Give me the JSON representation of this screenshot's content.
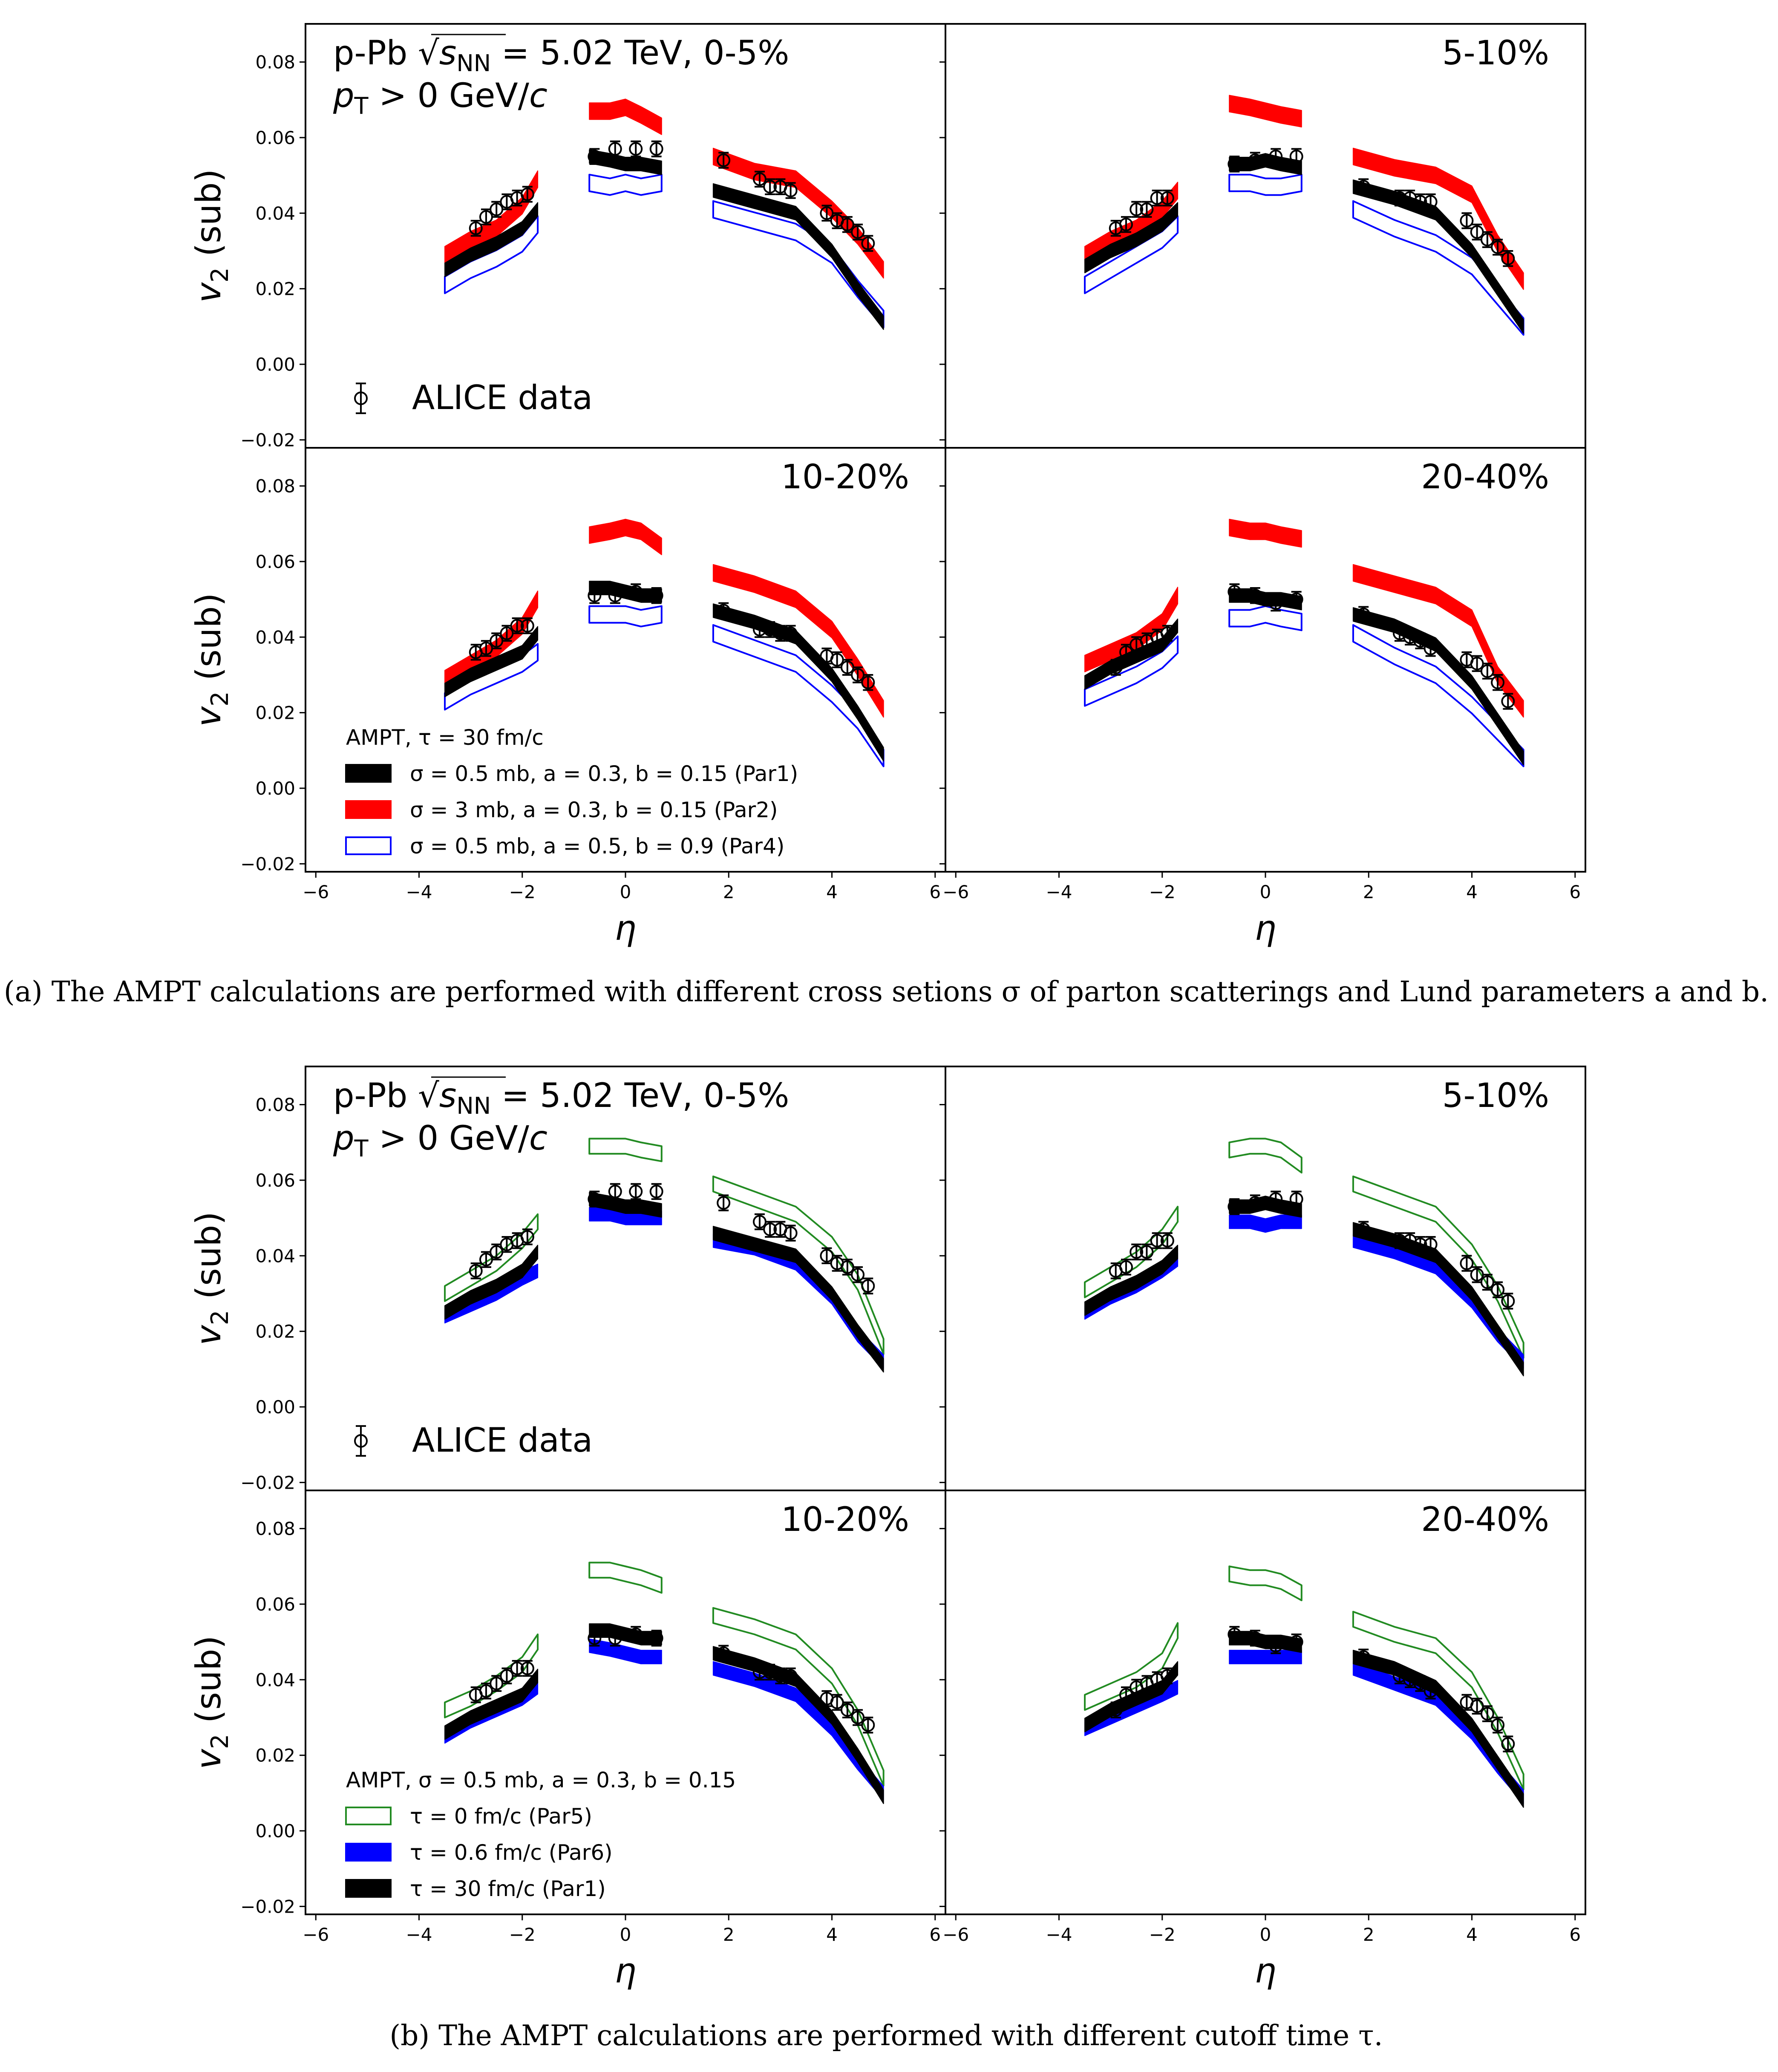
{
  "chart_data": {
    "type": "band-and-scatter",
    "xlabel": "η",
    "ylabel": {
      "main": "v",
      "sub": "2",
      "suffix": " (sub)"
    },
    "xlim": [
      -6.2,
      6.2
    ],
    "ylim": [
      -0.0221,
      0.0901
    ],
    "xticks": [
      -6,
      -4,
      -2,
      0,
      2,
      4,
      6
    ],
    "yticks": [
      -0.02,
      0.0,
      0.02,
      0.04,
      0.06,
      0.08
    ],
    "ytick_labels": [
      "−0.02",
      "0.00",
      "0.02",
      "0.04",
      "0.06",
      "0.08"
    ],
    "xtick_labels": [
      "−6",
      "−4",
      "−2",
      "0",
      "2",
      "4",
      "6"
    ],
    "grid": false,
    "annotation": {
      "line1_prefix": "p-Pb ",
      "sqrt_s": "s",
      "sqrt_sub": "NN",
      "line1_suffix": " = 5.02 TeV, 0-5%",
      "line2_p": "p",
      "line2_sub": "T",
      "line2_rest": " > 0 GeV/",
      "line2_c": "c"
    },
    "data_label": "ALICE data",
    "model_eta_segments": [
      [
        -3.5,
        -3.0,
        -2.5,
        -2.0,
        -1.7
      ],
      [
        -0.7,
        -0.3,
        0.0,
        0.3,
        0.7
      ],
      [
        1.7,
        2.5,
        3.3,
        4.0,
        4.5,
        5.0
      ]
    ],
    "data_eta_segments": [
      [
        -2.9,
        -2.7,
        -2.5,
        -2.3,
        -2.1,
        -1.9
      ],
      [
        -0.6,
        -0.2,
        0.2,
        0.6
      ],
      [
        1.9,
        2.6,
        2.8,
        3.0,
        3.2,
        3.9,
        4.1,
        4.3,
        4.5,
        4.7
      ]
    ],
    "data_error": 0.002,
    "centralities": [
      {
        "label": "0-5%",
        "data": [
          [
            0.036,
            0.039,
            0.041,
            0.043,
            0.044,
            0.045
          ],
          [
            0.055,
            0.057,
            0.057,
            0.057
          ],
          [
            0.054,
            0.049,
            0.047,
            0.047,
            0.046,
            0.04,
            0.038,
            0.037,
            0.035,
            0.032
          ]
        ]
      },
      {
        "label": "5-10%",
        "data": [
          [
            0.036,
            0.037,
            0.041,
            0.041,
            0.044,
            0.044
          ],
          [
            0.053,
            0.054,
            0.055,
            0.055
          ],
          [
            0.047,
            0.044,
            0.044,
            0.043,
            0.043,
            0.038,
            0.035,
            0.033,
            0.031,
            0.028
          ]
        ]
      },
      {
        "label": "10-20%",
        "data": [
          [
            0.036,
            0.037,
            0.039,
            0.041,
            0.043,
            0.043
          ],
          [
            0.051,
            0.051,
            0.052,
            0.051
          ],
          [
            0.047,
            0.042,
            0.042,
            0.041,
            0.041,
            0.035,
            0.034,
            0.032,
            0.03,
            0.028
          ]
        ]
      },
      {
        "label": "20-40%",
        "data": [
          [
            0.032,
            0.036,
            0.038,
            0.039,
            0.04,
            0.041
          ],
          [
            0.052,
            0.051,
            0.049,
            0.05
          ],
          [
            0.046,
            0.041,
            0.04,
            0.039,
            0.037,
            0.034,
            0.033,
            0.031,
            0.028,
            0.023
          ]
        ]
      }
    ],
    "models": {
      "Par1": {
        "color": "#000000",
        "style": "filled",
        "half_width": 0.0018,
        "values": [
          [
            [
              0.025,
              0.029,
              0.032,
              0.036,
              0.041
            ],
            [
              0.055,
              0.054,
              0.053,
              0.053,
              0.052
            ],
            [
              0.046,
              0.043,
              0.04,
              0.03,
              0.02,
              0.011
            ]
          ],
          [
            [
              0.026,
              0.03,
              0.033,
              0.037,
              0.041
            ],
            [
              0.053,
              0.053,
              0.054,
              0.053,
              0.052
            ],
            [
              0.047,
              0.044,
              0.04,
              0.03,
              0.02,
              0.01
            ]
          ],
          [
            [
              0.026,
              0.03,
              0.033,
              0.036,
              0.041
            ],
            [
              0.053,
              0.053,
              0.052,
              0.051,
              0.051
            ],
            [
              0.047,
              0.044,
              0.04,
              0.03,
              0.02,
              0.009
            ]
          ],
          [
            [
              0.028,
              0.032,
              0.035,
              0.038,
              0.043
            ],
            [
              0.051,
              0.051,
              0.05,
              0.05,
              0.049
            ],
            [
              0.046,
              0.043,
              0.038,
              0.028,
              0.018,
              0.008
            ]
          ]
        ]
      },
      "Par2": {
        "color": "#ff0000",
        "style": "filled",
        "half_width": 0.0022,
        "values": [
          [
            [
              0.029,
              0.033,
              0.036,
              0.042,
              0.049
            ],
            [
              0.067,
              0.067,
              0.068,
              0.066,
              0.063
            ],
            [
              0.055,
              0.051,
              0.049,
              0.041,
              0.034,
              0.025
            ]
          ],
          [
            [
              0.029,
              0.033,
              0.036,
              0.041,
              0.046
            ],
            [
              0.069,
              0.068,
              0.067,
              0.066,
              0.065
            ],
            [
              0.055,
              0.052,
              0.05,
              0.045,
              0.032,
              0.022
            ]
          ],
          [
            [
              0.029,
              0.033,
              0.037,
              0.043,
              0.05
            ],
            [
              0.067,
              0.068,
              0.069,
              0.068,
              0.064
            ],
            [
              0.057,
              0.054,
              0.05,
              0.042,
              0.032,
              0.021
            ]
          ],
          [
            [
              0.033,
              0.036,
              0.039,
              0.044,
              0.051
            ],
            [
              0.069,
              0.068,
              0.068,
              0.067,
              0.066
            ],
            [
              0.057,
              0.054,
              0.051,
              0.045,
              0.03,
              0.021
            ]
          ]
        ]
      },
      "Par4": {
        "color": "#0000ff",
        "style": "outline",
        "half_width": 0.0022,
        "values": [
          [
            [
              0.021,
              0.025,
              0.028,
              0.032,
              0.037
            ],
            [
              0.048,
              0.047,
              0.048,
              0.047,
              0.048
            ],
            [
              0.041,
              0.038,
              0.035,
              0.029,
              0.02,
              0.012
            ]
          ],
          [
            [
              0.021,
              0.025,
              0.029,
              0.033,
              0.037
            ],
            [
              0.048,
              0.048,
              0.047,
              0.047,
              0.048
            ],
            [
              0.041,
              0.036,
              0.032,
              0.026,
              0.018,
              0.01
            ]
          ],
          [
            [
              0.023,
              0.027,
              0.03,
              0.033,
              0.036
            ],
            [
              0.046,
              0.046,
              0.046,
              0.045,
              0.046
            ],
            [
              0.041,
              0.037,
              0.033,
              0.025,
              0.018,
              0.008
            ]
          ],
          [
            [
              0.024,
              0.027,
              0.03,
              0.034,
              0.038
            ],
            [
              0.045,
              0.045,
              0.046,
              0.045,
              0.044
            ],
            [
              0.041,
              0.035,
              0.03,
              0.022,
              0.015,
              0.008
            ]
          ]
        ]
      },
      "Par5": {
        "color": "#228b22",
        "style": "outline",
        "half_width": 0.002,
        "values": [
          [
            [
              0.03,
              0.034,
              0.038,
              0.044,
              0.049
            ],
            [
              0.069,
              0.069,
              0.069,
              0.068,
              0.067
            ],
            [
              0.059,
              0.055,
              0.051,
              0.043,
              0.033,
              0.016
            ]
          ],
          [
            [
              0.031,
              0.035,
              0.039,
              0.045,
              0.051
            ],
            [
              0.068,
              0.069,
              0.069,
              0.068,
              0.064
            ],
            [
              0.059,
              0.055,
              0.051,
              0.041,
              0.03,
              0.015
            ]
          ],
          [
            [
              0.032,
              0.035,
              0.039,
              0.044,
              0.05
            ],
            [
              0.069,
              0.069,
              0.068,
              0.067,
              0.065
            ],
            [
              0.057,
              0.054,
              0.05,
              0.041,
              0.03,
              0.014
            ]
          ],
          [
            [
              0.034,
              0.037,
              0.04,
              0.045,
              0.053
            ],
            [
              0.068,
              0.067,
              0.067,
              0.066,
              0.063
            ],
            [
              0.056,
              0.052,
              0.049,
              0.04,
              0.028,
              0.013
            ]
          ]
        ]
      },
      "Par6": {
        "color": "#0000ff",
        "style": "filled",
        "half_width": 0.0018,
        "values": [
          [
            [
              0.024,
              0.027,
              0.03,
              0.034,
              0.036
            ],
            [
              0.051,
              0.051,
              0.05,
              0.05,
              0.05
            ],
            [
              0.044,
              0.042,
              0.038,
              0.029,
              0.019,
              0.012
            ]
          ],
          [
            [
              0.025,
              0.029,
              0.032,
              0.036,
              0.039
            ],
            [
              0.049,
              0.049,
              0.048,
              0.049,
              0.049
            ],
            [
              0.044,
              0.041,
              0.037,
              0.028,
              0.019,
              0.012
            ]
          ],
          [
            [
              0.025,
              0.029,
              0.032,
              0.035,
              0.038
            ],
            [
              0.049,
              0.048,
              0.047,
              0.046,
              0.046
            ],
            [
              0.043,
              0.04,
              0.036,
              0.027,
              0.018,
              0.01
            ]
          ],
          [
            [
              0.027,
              0.03,
              0.033,
              0.036,
              0.038
            ],
            [
              0.046,
              0.046,
              0.046,
              0.046,
              0.046
            ],
            [
              0.043,
              0.039,
              0.035,
              0.026,
              0.017,
              0.009
            ]
          ]
        ]
      }
    },
    "figures": [
      {
        "models": [
          "Par2",
          "Par4",
          "Par1"
        ],
        "legend_title": "AMPT, τ = 30 fm/c",
        "legend": [
          {
            "model": "Par1",
            "label": "σ = 0.5 mb, a = 0.3, b = 0.15 (Par1)"
          },
          {
            "model": "Par2",
            "label": "σ = 3 mb, a = 0.3, b = 0.15 (Par2)"
          },
          {
            "model": "Par4",
            "label": "σ = 0.5 mb, a = 0.5, b = 0.9 (Par4)"
          }
        ],
        "caption": "(a) The AMPT calculations are performed with different cross setions σ of parton scatterings and Lund parameters a and b."
      },
      {
        "models": [
          "Par5",
          "Par6",
          "Par1"
        ],
        "legend_title": "AMPT, σ = 0.5 mb, a = 0.3, b = 0.15",
        "legend": [
          {
            "model": "Par5",
            "label": "τ = 0 fm/c (Par5)"
          },
          {
            "model": "Par6",
            "label": "τ = 0.6 fm/c (Par6)"
          },
          {
            "model": "Par1",
            "label": "τ = 30 fm/c (Par1)"
          }
        ],
        "caption": "(b) The AMPT calculations are performed with different cutoff time τ."
      }
    ]
  }
}
